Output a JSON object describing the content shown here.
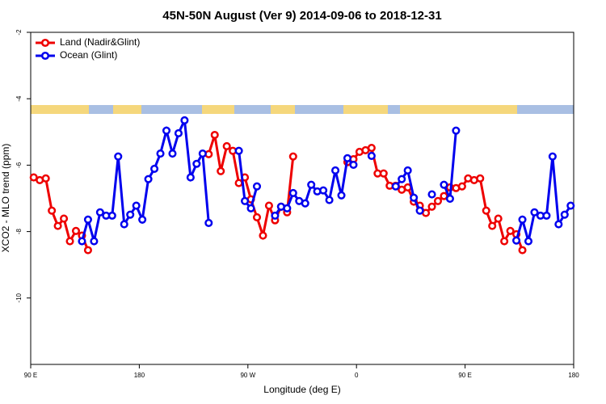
{
  "chart_data": {
    "type": "line",
    "title": "45N-50N August (Ver 9)   2014-09-06 to 2018-12-31",
    "x_label": "Longitude (deg E)",
    "y_label": "XCO2 - MLO trend (ppm)",
    "legend": "topleft",
    "x": [
      92.5,
      97.5,
      102.5,
      107.5,
      112.5,
      117.5,
      122.5,
      127.5,
      132.5,
      137.5,
      142.5,
      147.5,
      152.5,
      157.5,
      162.5,
      167.5,
      172.5,
      177.5,
      182.5,
      187.5,
      192.5,
      197.5,
      202.5,
      207.5,
      212.5,
      217.5,
      222.5,
      227.5,
      232.5,
      237.5,
      242.5,
      247.5,
      252.5,
      257.5,
      262.5,
      267.5,
      272.5,
      277.5,
      282.5,
      287.5,
      292.5,
      297.5,
      302.5,
      307.5,
      312.5,
      317.5,
      322.5,
      327.5,
      332.5,
      337.5,
      342.5,
      347.5,
      352.5,
      357.5,
      362.5,
      367.5,
      372.5,
      377.5,
      382.5,
      387.5,
      392.5,
      397.5,
      402.5,
      407.5,
      412.5,
      417.5,
      422.5,
      427.5,
      432.5,
      437.5,
      442.5,
      447.5,
      452.5,
      457.5,
      462.5,
      467.5,
      472.5,
      477.5,
      482.5,
      487.5,
      492.5,
      497.5,
      502.5,
      507.5,
      512.5,
      517.5,
      522.5,
      527.5,
      532.5,
      537.5
    ],
    "series": [
      {
        "name": "Land (Nadir&Glint)",
        "color": "#ee0000",
        "values": [
          -6.37,
          -6.45,
          -6.4,
          -7.37,
          -7.83,
          -7.61,
          -8.29,
          -7.98,
          -8.12,
          -8.56,
          null,
          null,
          null,
          null,
          null,
          null,
          null,
          null,
          null,
          null,
          null,
          null,
          null,
          null,
          null,
          null,
          null,
          null,
          null,
          -5.67,
          -5.09,
          -6.18,
          -5.43,
          -5.57,
          -6.54,
          -6.37,
          -7.03,
          -7.57,
          -8.12,
          -7.22,
          -7.66,
          -7.25,
          -7.42,
          -5.74,
          null,
          null,
          null,
          null,
          null,
          null,
          null,
          null,
          -5.91,
          -5.82,
          -5.6,
          -5.55,
          -5.48,
          -6.25,
          -6.25,
          -6.62,
          -6.62,
          -6.74,
          -6.67,
          -7.1,
          -7.22,
          -7.44,
          -7.25,
          -7.08,
          -6.93,
          -6.67,
          -6.69,
          -6.64,
          -6.4,
          -6.45,
          -6.4,
          -7.37,
          -7.83,
          -7.61,
          -8.29,
          -7.98,
          -8.08,
          -8.56,
          null,
          null,
          null,
          null,
          null,
          null,
          null,
          null
        ]
      },
      {
        "name": "Ocean (Glint)",
        "color": "#0000ee",
        "values": [
          null,
          null,
          null,
          null,
          null,
          null,
          null,
          null,
          -8.29,
          -7.64,
          -8.29,
          -7.42,
          -7.52,
          -7.52,
          -5.74,
          -7.78,
          -7.49,
          -7.22,
          -7.64,
          -6.42,
          -6.11,
          -5.65,
          -4.96,
          -5.65,
          -5.04,
          -4.65,
          -6.37,
          -5.96,
          -5.65,
          -7.74,
          null,
          null,
          null,
          null,
          -5.57,
          -7.08,
          -7.3,
          -6.64,
          null,
          null,
          -7.52,
          -7.25,
          -7.3,
          -6.84,
          -7.08,
          -7.15,
          -6.59,
          -6.79,
          -6.76,
          -7.05,
          -6.16,
          -6.91,
          -5.79,
          -5.99,
          null,
          null,
          -5.72,
          null,
          null,
          null,
          -6.64,
          -6.42,
          -6.16,
          -6.98,
          -7.37,
          null,
          -6.88,
          null,
          -6.59,
          -7.01,
          -4.96,
          null,
          null,
          null,
          null,
          null,
          null,
          null,
          null,
          null,
          -8.27,
          -7.64,
          -8.29,
          -7.42,
          -7.52,
          -7.52,
          -5.74,
          -7.78,
          -7.49,
          -7.22
        ]
      }
    ],
    "xlim": [
      90,
      540
    ],
    "xticks": [
      {
        "value": 90,
        "label": "90 E"
      },
      180,
      {
        "value": 270,
        "label": "90 W"
      },
      {
        "value": 360,
        "label": "0"
      },
      {
        "value": 450,
        "label": "90 E"
      },
      {
        "value": 540,
        "label": "180"
      }
    ],
    "ylim": [
      -12,
      -2
    ],
    "yticks": [
      -2,
      -4,
      -6,
      -8,
      -10
    ]
  }
}
